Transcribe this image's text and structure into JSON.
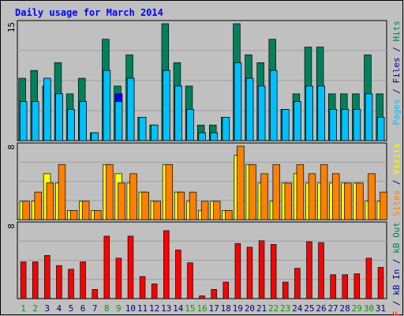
{
  "chart_data": {
    "title": "Daily usage for March 2014",
    "type": "bar",
    "days": [
      "1",
      "2",
      "3",
      "4",
      "5",
      "6",
      "7",
      "8",
      "9",
      "10",
      "11",
      "12",
      "13",
      "14",
      "15",
      "16",
      "17",
      "18",
      "19",
      "20",
      "21",
      "22",
      "23",
      "24",
      "25",
      "26",
      "27",
      "28",
      "29",
      "30",
      "31"
    ],
    "weekend_days": [
      1,
      2,
      8,
      9,
      15,
      16,
      22,
      23,
      29,
      30
    ],
    "panels": [
      {
        "id": "hits-files-pages",
        "ymax": 15,
        "ylabel": "15",
        "legend": [
          {
            "text": "Pages",
            "color": "#00c0ff"
          },
          {
            "text": " / ",
            "color": "#000080"
          },
          {
            "text": "Files",
            "color": "#0000a0"
          },
          {
            "text": " / ",
            "color": "#000080"
          },
          {
            "text": "Hits",
            "color": "#008040"
          }
        ],
        "series": [
          {
            "name": "Hits",
            "color": "#00805c",
            "values": [
              8,
              9,
              7,
              10,
              6,
              8,
              1,
              13,
              7,
              11,
              3,
              2,
              15,
              10,
              7,
              2,
              2,
              3,
              15,
              11,
              10,
              13,
              4,
              6,
              12,
              12,
              6,
              6,
              6,
              11,
              6
            ]
          },
          {
            "name": "Files",
            "color": "#0000ff",
            "values": [
              5,
              5,
              8,
              6,
              4,
              5,
              1,
              9,
              6,
              8,
              3,
              2,
              9,
              7,
              4,
              1,
              1,
              3,
              10,
              8,
              7,
              9,
              4,
              5,
              7,
              7,
              4,
              4,
              4,
              6,
              3
            ]
          },
          {
            "name": "Pages",
            "color": "#00c0ff",
            "values": [
              5,
              5,
              8,
              6,
              4,
              5,
              1,
              9,
              5,
              8,
              3,
              2,
              9,
              7,
              4,
              1,
              1,
              3,
              10,
              8,
              7,
              9,
              4,
              5,
              7,
              7,
              4,
              4,
              4,
              6,
              3
            ]
          }
        ]
      },
      {
        "id": "visits-sites",
        "ymax": 8,
        "ylabel": "8",
        "legend": [
          {
            "text": "Sites",
            "color": "#ff8000"
          },
          {
            "text": " / ",
            "color": "#000080"
          },
          {
            "text": "Visits",
            "color": "#ffff00"
          }
        ],
        "series": [
          {
            "name": "Visits",
            "color": "#ffff00",
            "values": [
              2,
              2,
              5,
              4,
              1,
              2,
              1,
              6,
              5,
              4,
              3,
              2,
              6,
              3,
              2,
              1,
              2,
              1,
              7,
              6,
              4,
              2,
              4,
              5,
              4,
              4,
              4,
              4,
              4,
              2,
              2
            ]
          },
          {
            "name": "Sites",
            "color": "#ff8000",
            "values": [
              2,
              3,
              4,
              6,
              1,
              2,
              1,
              6,
              4,
              5,
              3,
              2,
              6,
              3,
              3,
              2,
              2,
              1,
              8,
              6,
              5,
              6,
              4,
              6,
              5,
              6,
              5,
              4,
              4,
              5,
              3
            ]
          }
        ]
      },
      {
        "id": "kbytes",
        "ymax": 8,
        "ylabel": "8",
        "legend": [
          {
            "text": "kB F",
            "color": "#ff0000"
          },
          {
            "text": " / ",
            "color": "#000080"
          },
          {
            "text": "kB In",
            "color": "#0000a0"
          },
          {
            "text": " / ",
            "color": "#000080"
          },
          {
            "text": "kB Out",
            "color": "#008040"
          }
        ],
        "series": [
          {
            "name": "kB F",
            "color": "#ff0000",
            "values": [
              4,
              4,
              4.7,
              3.6,
              3.2,
              4,
              1,
              6.8,
              4.4,
              6.8,
              2.4,
              1.6,
              7.4,
              5.3,
              3.9,
              0.3,
              1,
              1.8,
              6,
              5.6,
              6.3,
              5.9,
              1.8,
              3.3,
              6.2,
              6.1,
              2.6,
              2.6,
              2.7,
              4.4,
              3.4
            ]
          }
        ]
      }
    ]
  }
}
